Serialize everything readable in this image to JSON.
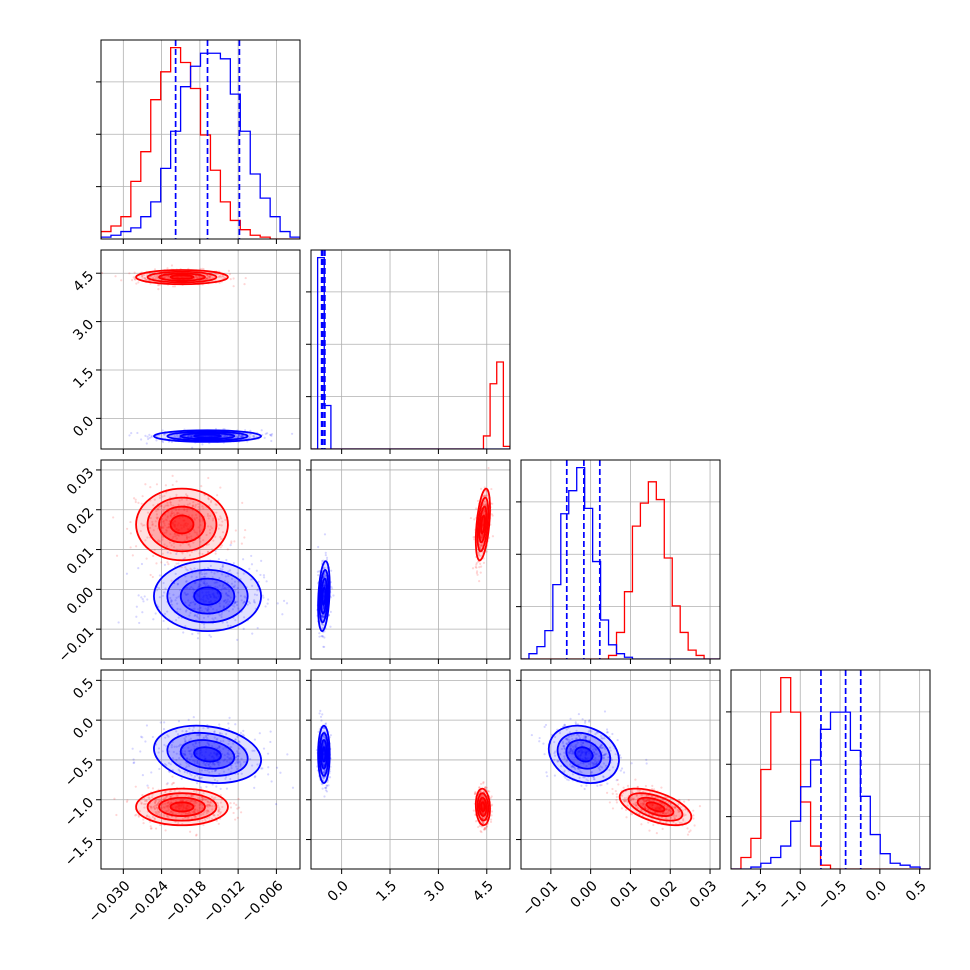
{
  "chart_data": {
    "type": "corner",
    "grid": true,
    "colors": {
      "sample_a": "#ff0000",
      "sample_b": "#0000ff",
      "grid": "#b0b0b0",
      "axis": "#000000"
    },
    "parameters": [
      {
        "id": "p0",
        "range": [
          -0.0335,
          -0.0023
        ],
        "ticks": [
          -0.03,
          -0.024,
          -0.018,
          -0.012,
          -0.006
        ],
        "tick_labels": [
          "−0.030",
          "−0.024",
          "−0.018",
          "−0.012",
          "−0.006"
        ]
      },
      {
        "id": "p1",
        "range": [
          -0.95,
          5.22
        ],
        "ticks": [
          0.0,
          1.5,
          3.0,
          4.5
        ],
        "tick_labels": [
          "0.0",
          "1.5",
          "3.0",
          "4.5"
        ]
      },
      {
        "id": "p2",
        "range": [
          -0.0175,
          0.0325
        ],
        "ticks": [
          -0.01,
          0.0,
          0.01,
          0.02,
          0.03
        ],
        "tick_labels": [
          "−0.01",
          "0.00",
          "0.01",
          "0.02",
          "0.03"
        ]
      },
      {
        "id": "p3",
        "range": [
          -1.87,
          0.63
        ],
        "ticks": [
          -1.5,
          -1.0,
          -0.5,
          0.0,
          0.5
        ],
        "tick_labels": [
          "−1.5",
          "−1.0",
          "−0.5",
          "0.0",
          "0.5"
        ]
      }
    ],
    "samples": [
      {
        "id": "sample_a",
        "color": "#ff0000",
        "means": [
          -0.0208,
          4.38,
          0.0163,
          -1.09
        ],
        "stds": [
          0.0036,
          0.11,
          0.0045,
          0.115
        ],
        "corr": {
          "0-1": 0.0,
          "0-2": 0.0,
          "0-3": 0.0,
          "1-2": 0.45,
          "1-3": -0.1,
          "2-3": -0.55
        }
      },
      {
        "id": "sample_b",
        "color": "#0000ff",
        "means": [
          -0.0168,
          -0.55,
          -0.0017,
          -0.43
        ],
        "stds": [
          0.0042,
          0.09,
          0.0044,
          0.18
        ],
        "corr": {
          "0-1": 0.0,
          "0-2": 0.0,
          "0-3": -0.2,
          "1-2": 0.3,
          "1-3": 0.0,
          "2-3": -0.2
        }
      }
    ],
    "quantile_lines": {
      "color": "#0000ff",
      "values": [
        [
          -0.0218,
          -0.0168,
          -0.0118
        ],
        [
          -0.62,
          -0.58,
          -0.52
        ],
        [
          -0.006,
          -0.0017,
          0.0023
        ],
        [
          -0.74,
          -0.43,
          -0.24
        ]
      ]
    },
    "histograms": [
      {
        "param": 0,
        "bins": [
          -0.0335,
          -0.0023
        ],
        "sample_a": [
          0.04,
          0.07,
          0.12,
          0.31,
          0.47,
          0.75,
          0.9,
          1.03,
          0.95,
          0.81,
          0.56,
          0.37,
          0.2,
          0.1,
          0.05,
          0.02,
          0.01,
          0.0,
          0.0,
          0.0
        ],
        "sample_b": [
          0.01,
          0.02,
          0.04,
          0.06,
          0.12,
          0.2,
          0.38,
          0.58,
          0.82,
          0.93,
          1.0,
          1.0,
          0.97,
          0.78,
          0.58,
          0.35,
          0.22,
          0.12,
          0.04,
          0.01
        ]
      },
      {
        "param": 1,
        "bins": [
          -0.95,
          5.22
        ],
        "sample_a": [
          0,
          0,
          0,
          0,
          0,
          0,
          0,
          0,
          0,
          0,
          0,
          0,
          0,
          0,
          0,
          0,
          0,
          0,
          0,
          0,
          0,
          0,
          0,
          0,
          0,
          0,
          0.15,
          0.75,
          1.0,
          0.03
        ],
        "sample_b": [
          0.0,
          2.2,
          0.5,
          0.0,
          0,
          0,
          0,
          0,
          0,
          0,
          0,
          0,
          0,
          0,
          0,
          0,
          0,
          0,
          0,
          0,
          0,
          0,
          0,
          0,
          0,
          0,
          0,
          0,
          0,
          0
        ]
      },
      {
        "param": 2,
        "bins": [
          -0.0175,
          0.0325
        ],
        "sample_a": [
          0,
          0,
          0,
          0,
          0,
          0,
          0,
          0,
          0,
          0,
          0.0,
          0.02,
          0.15,
          0.38,
          0.75,
          0.88,
          1.0,
          0.9,
          0.57,
          0.3,
          0.15,
          0.05,
          0.02,
          0.0,
          0.0
        ],
        "sample_b": [
          0.0,
          0.03,
          0.07,
          0.16,
          0.42,
          0.82,
          0.95,
          1.08,
          0.85,
          0.55,
          0.22,
          0.08,
          0.03,
          0.01,
          0.0,
          0,
          0,
          0,
          0,
          0,
          0,
          0,
          0,
          0,
          0
        ]
      },
      {
        "param": 3,
        "bins": [
          -1.87,
          0.63
        ],
        "sample_a": [
          0.0,
          0.06,
          0.16,
          0.52,
          0.82,
          1.0,
          0.82,
          0.35,
          0.12,
          0.02,
          0.0,
          0,
          0,
          0,
          0,
          0,
          0,
          0,
          0,
          0
        ],
        "sample_b": [
          0.0,
          0.0,
          0.01,
          0.03,
          0.06,
          0.12,
          0.25,
          0.43,
          0.57,
          0.73,
          0.82,
          0.82,
          0.62,
          0.38,
          0.18,
          0.08,
          0.03,
          0.02,
          0.01,
          0.0
        ]
      }
    ]
  }
}
